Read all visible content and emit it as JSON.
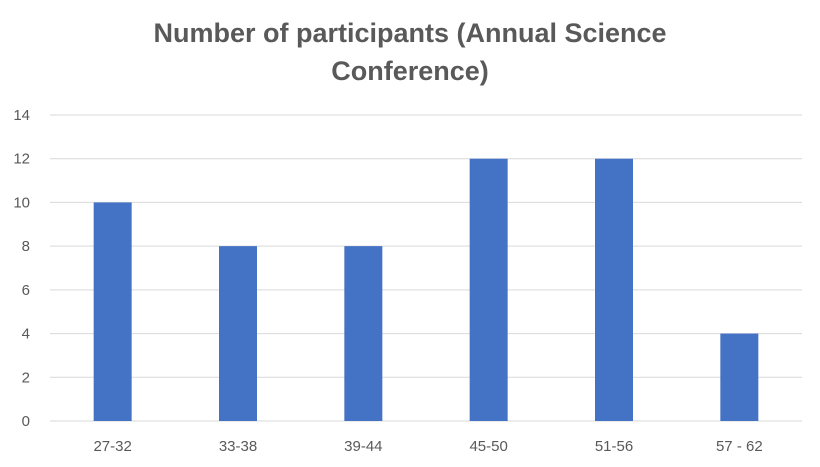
{
  "chart_data": {
    "type": "bar",
    "title_lines": [
      "Number of participants (Annual Science",
      "Conference)"
    ],
    "categories": [
      "27-32",
      "33-38",
      "39-44",
      "45-50",
      "51-56",
      "57 - 62"
    ],
    "values": [
      10,
      8,
      8,
      12,
      12,
      4
    ],
    "ylim": [
      0,
      14
    ],
    "yticks": [
      "0",
      "2",
      "4",
      "6",
      "8",
      "10",
      "12",
      "14"
    ],
    "grid": true,
    "colors": {
      "bar": "#4472C4",
      "grid": "#D9D9D9",
      "text": "#595959"
    }
  }
}
